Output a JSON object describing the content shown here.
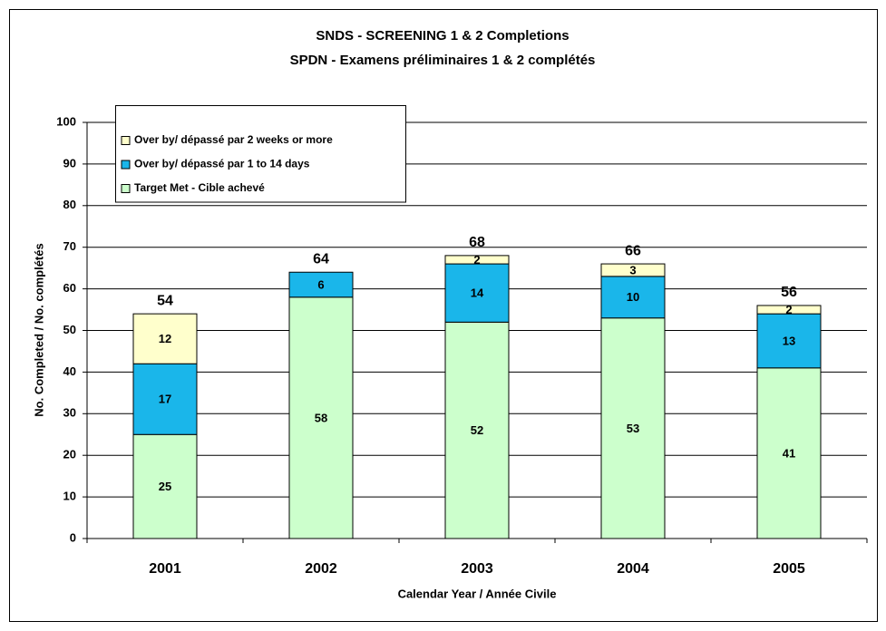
{
  "chart_data": {
    "type": "stacked_bar",
    "title": "SNDS -  SCREENING 1 & 2 Completions",
    "subtitle": "SPDN - Examens préliminaires 1 & 2 complétés",
    "x_label": "Calendar Year  / Année Civile",
    "y_label": "No. Completed / No. complétés",
    "categories": [
      "2001",
      "2002",
      "2003",
      "2004",
      "2005"
    ],
    "series": [
      {
        "name": "Target Met - Cible achevé",
        "color": "#ccffcc",
        "values": [
          25,
          58,
          52,
          53,
          41
        ]
      },
      {
        "name": "Over by/ dépassé par 1 to 14 days",
        "color": "#1ab6ea",
        "values": [
          17,
          6,
          14,
          10,
          13
        ]
      },
      {
        "name": "Over by/ dépassé par 2 weeks or more",
        "color": "#ffffcc",
        "values": [
          12,
          null,
          2,
          3,
          2
        ]
      }
    ],
    "totals": [
      54,
      64,
      68,
      66,
      56
    ],
    "ylim": [
      0,
      100
    ],
    "yticks": [
      0,
      10,
      20,
      30,
      40,
      50,
      60,
      70,
      80,
      90,
      100
    ],
    "grid": true,
    "legend": "top-left"
  }
}
